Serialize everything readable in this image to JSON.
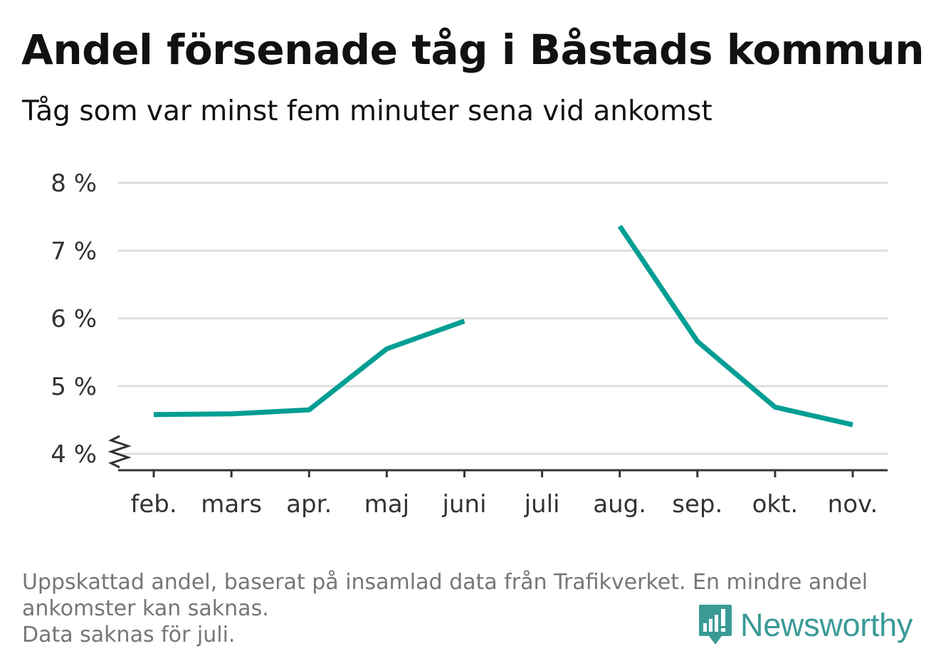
{
  "title": "Andel försenade tåg i Båstads kommun",
  "subtitle": "Tåg som var minst fem minuter sena vid ankomst",
  "footer": {
    "line1": "Uppskattad andel, baserat på insamlad data från Trafikverket. En mindre andel",
    "line2": "ankomster kan saknas.",
    "line3": "Data saknas för juli."
  },
  "brand": {
    "name": "Newsworthy",
    "icon": "newsworthy-logo-icon",
    "color": "#3a9a96"
  },
  "chart_data": {
    "type": "line",
    "title": "Andel försenade tåg i Båstads kommun",
    "xlabel": "",
    "ylabel": "",
    "categories": [
      "feb.",
      "mars",
      "apr.",
      "maj",
      "juni",
      "juli",
      "aug.",
      "sep.",
      "okt.",
      "nov."
    ],
    "series": [
      {
        "values": [
          4.58,
          4.59,
          4.65,
          5.55,
          5.96,
          null,
          7.36,
          5.66,
          4.69,
          4.43
        ],
        "color": "#009e94"
      }
    ],
    "ylim": [
      4,
      8
    ],
    "yticks": [
      4,
      5,
      6,
      7,
      8
    ],
    "ytick_labels": [
      "4 %",
      "5 %",
      "6 %",
      "7 %",
      "8 %"
    ],
    "axis_break": true,
    "grid": true,
    "legend": "none"
  }
}
